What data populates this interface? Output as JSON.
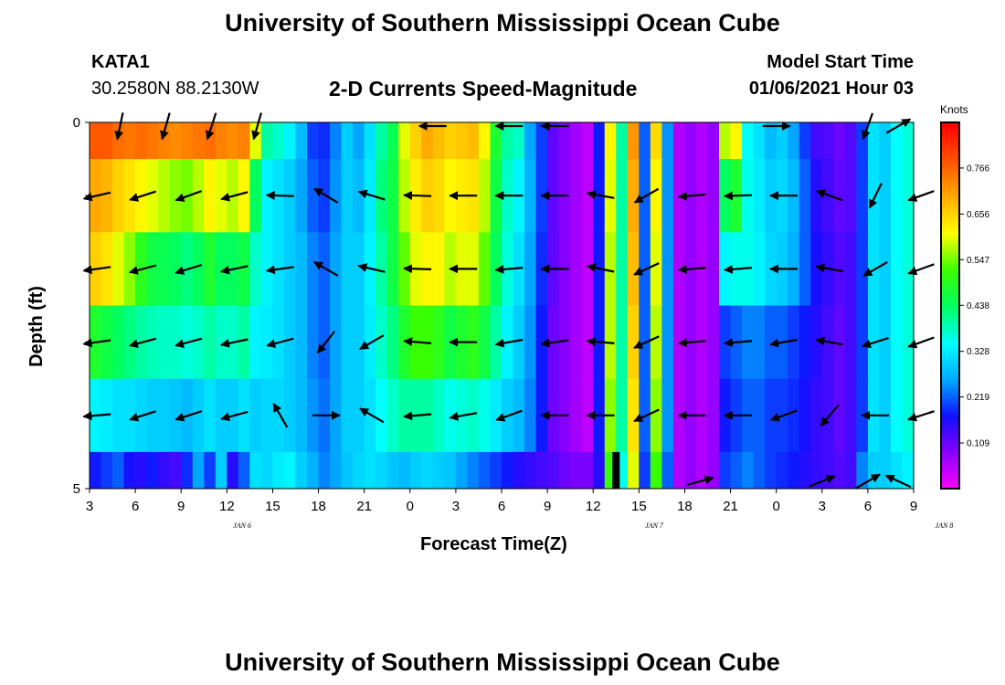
{
  "header": {
    "title_top": "University of Southern Mississippi Ocean Cube",
    "title_bottom": "University of Southern Mississippi Ocean Cube",
    "station_id": "KATA1",
    "station_coords": "30.2580N 88.2130W",
    "plot_title": "2-D Currents Speed-Magnitude",
    "model_start_label": "Model Start Time",
    "model_start_value": "01/06/2021 Hour 03"
  },
  "colors": {
    "ramp": [
      "#ff00ff",
      "#8c00ff",
      "#1010ff",
      "#00aaff",
      "#00ffff",
      "#00ff60",
      "#3cff00",
      "#ffff00",
      "#ffaa00",
      "#ff5000",
      "#ff0000"
    ]
  },
  "chart_data": {
    "type": "heatmap",
    "title": "2-D Currents Speed-Magnitude",
    "xlabel": "Forecast Time(Z)",
    "ylabel": "Depth (ft)",
    "x_tick_labels": [
      "3",
      "6",
      "9",
      "12",
      "15",
      "18",
      "21",
      "0",
      "3",
      "6",
      "9",
      "12",
      "15",
      "18",
      "21",
      "0",
      "3",
      "6",
      "9"
    ],
    "x_day_labels": [
      {
        "label": "JAN 6",
        "at_hour": 13
      },
      {
        "label": "JAN 7",
        "at_hour": 40
      },
      {
        "label": "JAN 8",
        "at_hour": 59
      }
    ],
    "x_range_hours": [
      3,
      57
    ],
    "y_tick_labels": [
      "0",
      "5"
    ],
    "y_range": [
      0,
      5
    ],
    "depth_levels": [
      0,
      1,
      2,
      3,
      4,
      5
    ],
    "colorbar": {
      "units": "Knots",
      "range": [
        0,
        0.875
      ],
      "ticks": [
        "0.766",
        "0.656",
        "0.547",
        "0.438",
        "0.328",
        "0.219",
        "0.109"
      ]
    },
    "speed_knots": [
      [
        0.78,
        0.78,
        0.76,
        0.75,
        0.76,
        0.75,
        0.74,
        0.73,
        0.74,
        0.75,
        0.76,
        0.74,
        0.73,
        0.74,
        0.6,
        0.4,
        0.38,
        0.34,
        0.28,
        0.2,
        0.19,
        0.24,
        0.3,
        0.26,
        0.32,
        0.4,
        0.45,
        0.6,
        0.66,
        0.7,
        0.68,
        0.66,
        0.67,
        0.68,
        0.62,
        0.48,
        0.4,
        0.38,
        0.26,
        0.2,
        0.12,
        0.09,
        0.07,
        0.05,
        0.18,
        0.62,
        0.4,
        0.72,
        0.22,
        0.65,
        0.25,
        0.06,
        0.08,
        0.06,
        0.08,
        0.58,
        0.62,
        0.35,
        0.32,
        0.28,
        0.3,
        0.26,
        0.2,
        0.14,
        0.13,
        0.11,
        0.13,
        0.2,
        0.32,
        0.3,
        0.35,
        0.37
      ],
      [
        0.7,
        0.69,
        0.66,
        0.64,
        0.62,
        0.6,
        0.58,
        0.56,
        0.55,
        0.58,
        0.62,
        0.6,
        0.58,
        0.62,
        0.44,
        0.34,
        0.32,
        0.3,
        0.26,
        0.22,
        0.2,
        0.25,
        0.3,
        0.28,
        0.33,
        0.42,
        0.46,
        0.58,
        0.63,
        0.66,
        0.65,
        0.62,
        0.63,
        0.64,
        0.58,
        0.46,
        0.38,
        0.34,
        0.27,
        0.2,
        0.12,
        0.09,
        0.07,
        0.05,
        0.18,
        0.6,
        0.4,
        0.7,
        0.22,
        0.62,
        0.25,
        0.06,
        0.08,
        0.06,
        0.08,
        0.44,
        0.48,
        0.36,
        0.33,
        0.3,
        0.31,
        0.28,
        0.22,
        0.16,
        0.14,
        0.12,
        0.13,
        0.2,
        0.32,
        0.3,
        0.35,
        0.37
      ],
      [
        0.66,
        0.64,
        0.6,
        0.56,
        0.5,
        0.46,
        0.45,
        0.44,
        0.42,
        0.44,
        0.48,
        0.44,
        0.44,
        0.46,
        0.38,
        0.34,
        0.32,
        0.3,
        0.28,
        0.24,
        0.22,
        0.26,
        0.3,
        0.3,
        0.34,
        0.4,
        0.46,
        0.54,
        0.6,
        0.62,
        0.62,
        0.58,
        0.6,
        0.6,
        0.54,
        0.44,
        0.37,
        0.32,
        0.26,
        0.19,
        0.12,
        0.09,
        0.07,
        0.05,
        0.18,
        0.58,
        0.4,
        0.68,
        0.22,
        0.6,
        0.25,
        0.06,
        0.08,
        0.06,
        0.08,
        0.34,
        0.36,
        0.36,
        0.34,
        0.31,
        0.3,
        0.27,
        0.22,
        0.17,
        0.15,
        0.13,
        0.14,
        0.2,
        0.32,
        0.3,
        0.35,
        0.37
      ],
      [
        0.48,
        0.46,
        0.44,
        0.42,
        0.4,
        0.39,
        0.38,
        0.38,
        0.37,
        0.38,
        0.4,
        0.38,
        0.38,
        0.4,
        0.34,
        0.33,
        0.32,
        0.3,
        0.28,
        0.24,
        0.22,
        0.26,
        0.3,
        0.3,
        0.33,
        0.38,
        0.42,
        0.48,
        0.52,
        0.52,
        0.5,
        0.46,
        0.48,
        0.5,
        0.46,
        0.4,
        0.34,
        0.3,
        0.25,
        0.18,
        0.11,
        0.09,
        0.07,
        0.05,
        0.18,
        0.58,
        0.4,
        0.66,
        0.22,
        0.58,
        0.25,
        0.06,
        0.08,
        0.06,
        0.08,
        0.2,
        0.22,
        0.24,
        0.24,
        0.22,
        0.22,
        0.2,
        0.18,
        0.16,
        0.14,
        0.12,
        0.14,
        0.2,
        0.32,
        0.3,
        0.35,
        0.37
      ],
      [
        0.34,
        0.33,
        0.32,
        0.32,
        0.31,
        0.3,
        0.3,
        0.29,
        0.28,
        0.3,
        0.32,
        0.3,
        0.3,
        0.32,
        0.3,
        0.31,
        0.31,
        0.3,
        0.28,
        0.25,
        0.23,
        0.26,
        0.3,
        0.3,
        0.32,
        0.35,
        0.38,
        0.4,
        0.4,
        0.4,
        0.38,
        0.36,
        0.37,
        0.38,
        0.36,
        0.33,
        0.3,
        0.28,
        0.24,
        0.18,
        0.11,
        0.09,
        0.07,
        0.05,
        0.18,
        0.56,
        0.4,
        0.64,
        0.22,
        0.56,
        0.25,
        0.06,
        0.08,
        0.06,
        0.08,
        0.18,
        0.2,
        0.22,
        0.22,
        0.2,
        0.2,
        0.19,
        0.17,
        0.15,
        0.14,
        0.12,
        0.14,
        0.2,
        0.32,
        0.3,
        0.35,
        0.37
      ]
    ],
    "bottom_cell_speeds": [
      0.18,
      0.2,
      0.22,
      0.17,
      0.16,
      0.18,
      0.15,
      0.14,
      0.19,
      0.26,
      0.2,
      0.3,
      0.16,
      0.22,
      0.32,
      0.31,
      0.33,
      0.34,
      0.3,
      0.27,
      0.24,
      0.26,
      0.29,
      0.31,
      0.32,
      0.31,
      0.29,
      0.28,
      0.3,
      0.31,
      0.3,
      0.29,
      0.26,
      0.24,
      0.22,
      0.2,
      0.18,
      0.16,
      0.15,
      0.14,
      0.13,
      0.11,
      0.1,
      0.1,
      0.16,
      0.52,
      0.36,
      0.6,
      0.2,
      0.52,
      0.22,
      0.06,
      0.08,
      0.06,
      0.08,
      0.2,
      0.22,
      0.24,
      0.22,
      0.2,
      0.19,
      0.18,
      0.16,
      0.15,
      0.14,
      0.13,
      0.14,
      0.24,
      0.3,
      0.3,
      0.32,
      0.34
    ],
    "vectors_depth0": [
      {
        "hour": 5,
        "dir_deg": 192
      },
      {
        "hour": 8,
        "dir_deg": 196
      },
      {
        "hour": 11,
        "dir_deg": 198
      },
      {
        "hour": 14,
        "dir_deg": 196
      },
      {
        "hour": 25.5,
        "dir_deg": 270
      },
      {
        "hour": 30.5,
        "dir_deg": 270
      },
      {
        "hour": 33.5,
        "dir_deg": 270
      },
      {
        "hour": 48,
        "dir_deg": 90
      },
      {
        "hour": 54,
        "dir_deg": 200
      },
      {
        "hour": 56,
        "dir_deg": 60
      }
    ],
    "vectors": [
      {
        "depth": 1,
        "hours": [
          3.5,
          6.5,
          9.5,
          12.5,
          15.5,
          18.5,
          21.5,
          24.5,
          27.5,
          30.5,
          33.5,
          36.5,
          39.5,
          42.5,
          45.5,
          48.5,
          51.5,
          54.5,
          57.5
        ],
        "dir_deg": [
          257,
          252,
          250,
          255,
          272,
          301,
          287,
          272,
          270,
          270,
          270,
          280,
          240,
          265,
          268,
          270,
          290,
          206,
          250
        ]
      },
      {
        "depth": 2,
        "hours": [
          3.5,
          6.5,
          9.5,
          12.5,
          15.5,
          18.5,
          21.5,
          24.5,
          27.5,
          30.5,
          33.5,
          36.5,
          39.5,
          42.5,
          45.5,
          48.5,
          51.5,
          54.5,
          57.5
        ],
        "dir_deg": [
          262,
          255,
          253,
          258,
          262,
          300,
          283,
          272,
          270,
          265,
          270,
          282,
          245,
          265,
          265,
          270,
          280,
          240,
          250
        ]
      },
      {
        "depth": 3,
        "hours": [
          3.5,
          6.5,
          9.5,
          12.5,
          15.5,
          18.5,
          21.5,
          24.5,
          27.5,
          30.5,
          33.5,
          36.5,
          39.5,
          42.5,
          45.5,
          48.5,
          51.5,
          54.5,
          57.5
        ],
        "dir_deg": [
          262,
          255,
          255,
          258,
          255,
          218,
          240,
          275,
          270,
          260,
          262,
          275,
          245,
          265,
          265,
          260,
          280,
          252,
          250
        ]
      },
      {
        "depth": 4,
        "hours": [
          3.5,
          6.5,
          9.5,
          12.5,
          15.5,
          18.5,
          21.5,
          24.5,
          27.5,
          30.5,
          33.5,
          36.5,
          39.5,
          42.5,
          45.5,
          48.5,
          51.5,
          54.5,
          57.5
        ],
        "dir_deg": [
          265,
          252,
          252,
          255,
          330,
          90,
          300,
          265,
          260,
          250,
          270,
          270,
          245,
          270,
          270,
          250,
          220,
          270,
          252
        ]
      }
    ],
    "vectors_bottom": [
      {
        "hour": 43,
        "dir_deg": 75
      },
      {
        "hour": 51,
        "dir_deg": 68
      },
      {
        "hour": 54,
        "dir_deg": 60
      },
      {
        "hour": 56,
        "dir_deg": 295
      }
    ],
    "gap_marker_hour": 37.5
  }
}
